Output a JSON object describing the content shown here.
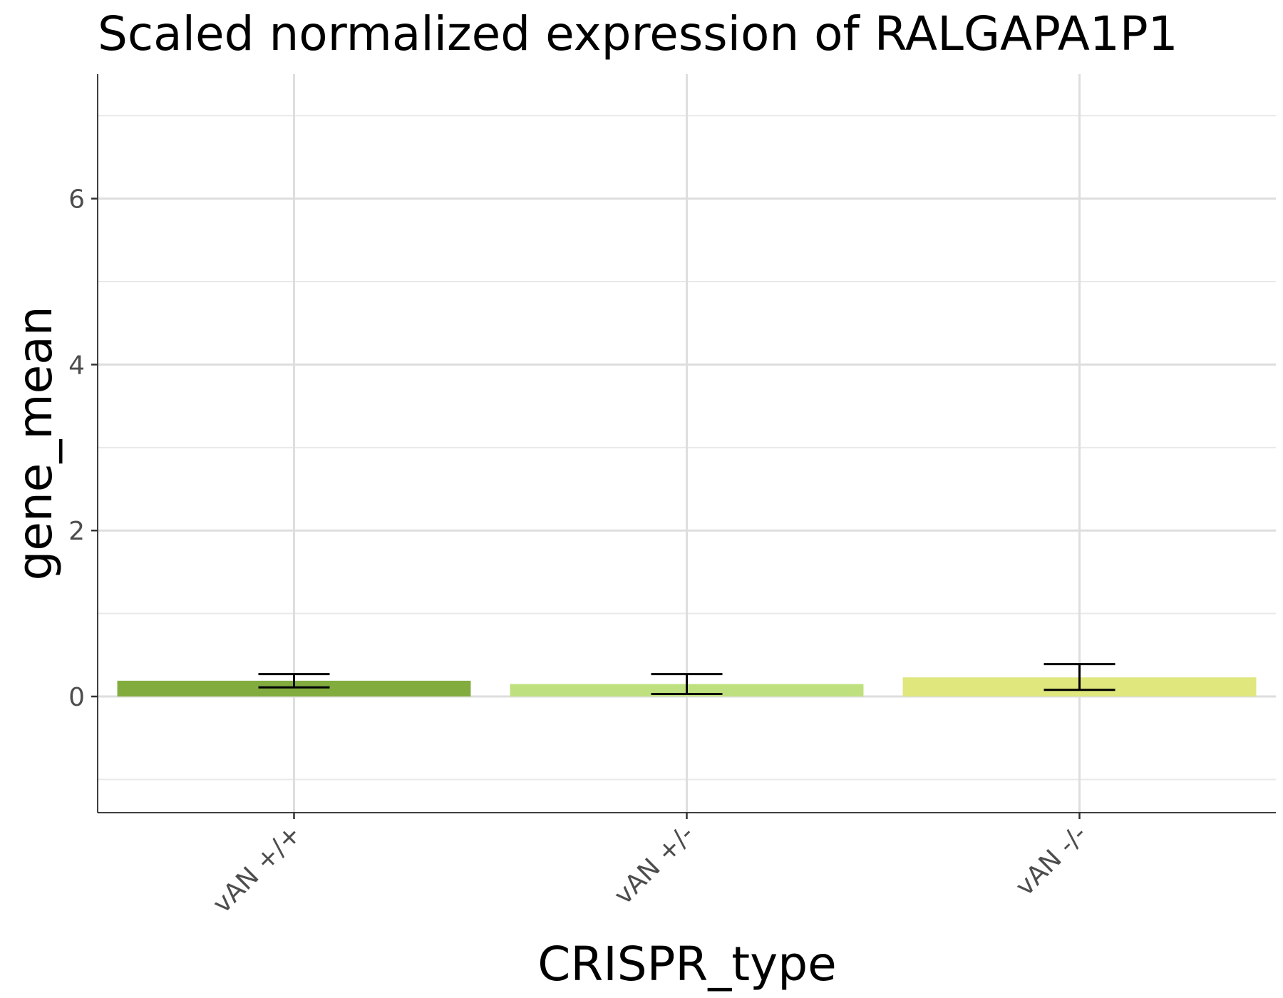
{
  "chart_data": {
    "type": "bar",
    "title": "Scaled normalized expression of RALGAPA1P1",
    "xlabel": "CRISPR_type",
    "ylabel": "gene_mean",
    "categories": [
      "vAN +/+",
      "vAN +/-",
      "vAN -/-"
    ],
    "values": [
      0.19,
      0.15,
      0.23
    ],
    "error_low": [
      0.11,
      0.03,
      0.08
    ],
    "error_high": [
      0.27,
      0.27,
      0.39
    ],
    "colors": [
      "#82AD3E",
      "#BFE07E",
      "#DFE77D"
    ],
    "ylim": [
      -1.4,
      7.5
    ],
    "yticks": [
      0,
      2,
      4,
      6
    ],
    "ytick_labels": [
      "0",
      "2",
      "4",
      "6"
    ],
    "yminor": [
      -1,
      1,
      3,
      5,
      7
    ],
    "grid": true,
    "legend": "none"
  }
}
